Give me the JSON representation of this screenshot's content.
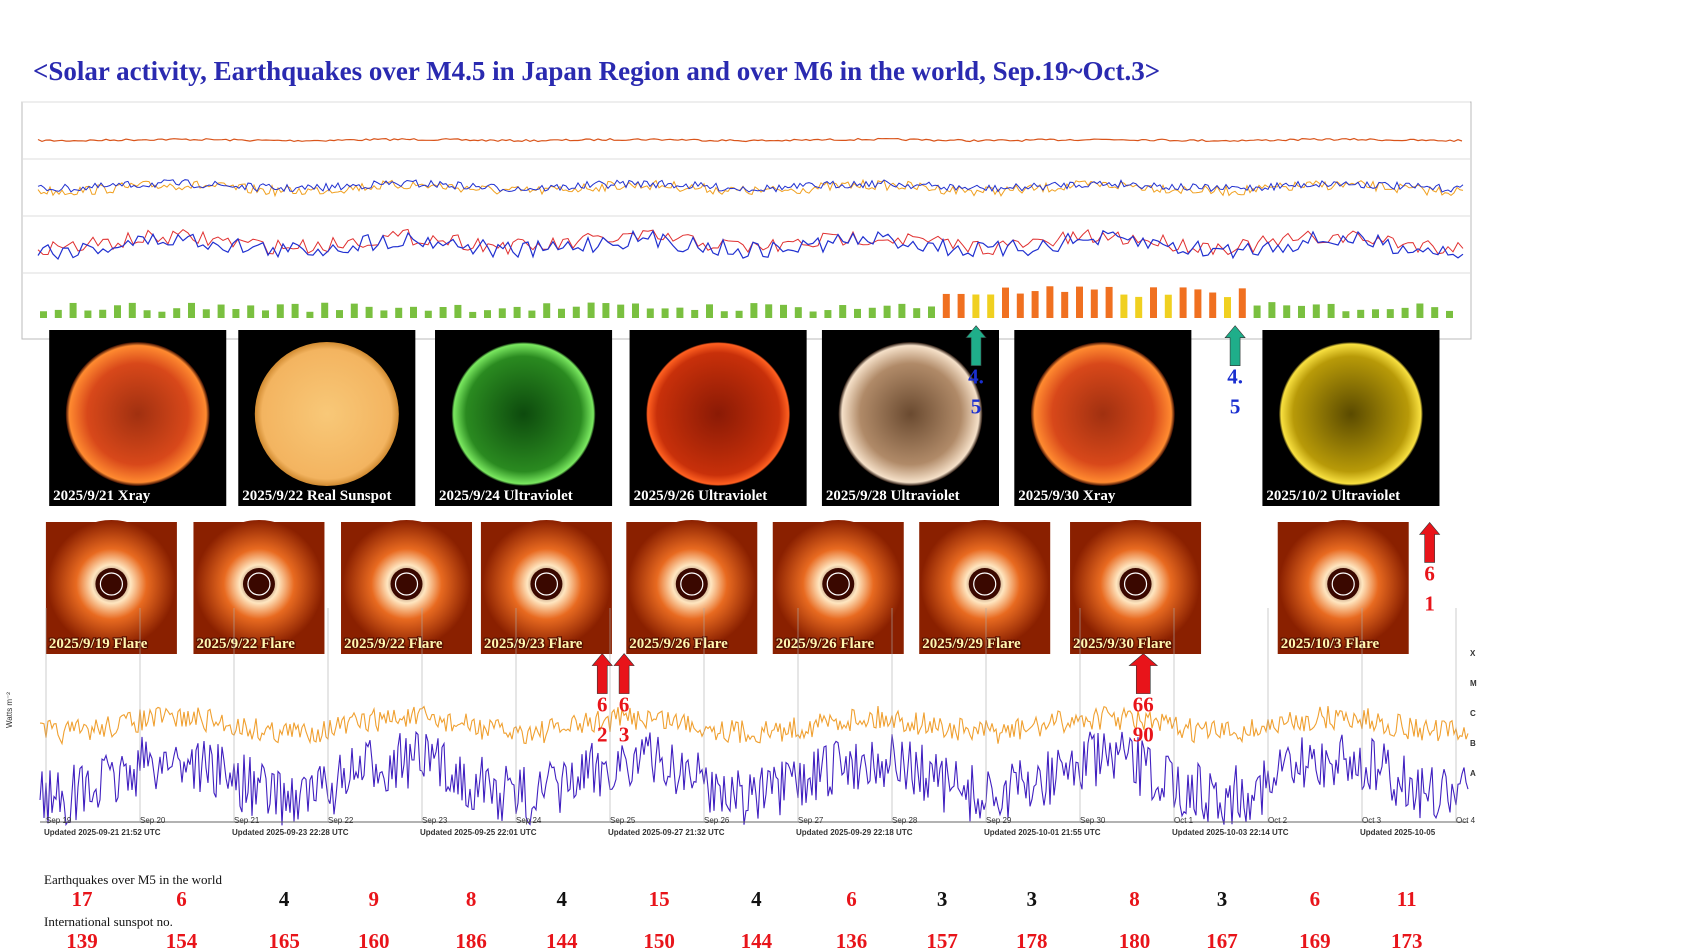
{
  "title": "<Solar activity, Earthquakes over M4.5 in Japan Region and over M6 in the world, Sep.19~Oct.3>",
  "sun_images": [
    {
      "caption": "2025/9/21 Xray",
      "kind": "xray"
    },
    {
      "caption": "2025/9/22  Real Sunspot",
      "kind": "sunspot"
    },
    {
      "caption": "2025/9/24 Ultraviolet",
      "kind": "green"
    },
    {
      "caption": "2025/9/26 Ultraviolet",
      "kind": "red"
    },
    {
      "caption": "2025/9/28 Ultraviolet",
      "kind": "bronze"
    },
    {
      "caption": "2025/9/30 Xray",
      "kind": "xray"
    },
    {
      "caption": "2025/10/2 Ultraviolet",
      "kind": "yellow"
    }
  ],
  "flare_images": [
    "2025/9/19 Flare",
    "2025/9/22 Flare",
    "2025/9/22 Flare",
    "2025/9/23 Flare",
    "2025/9/26 Flare",
    "2025/9/26 Flare",
    "2025/9/29 Flare",
    "2025/9/30 Flare",
    "2025/10/3 Flare"
  ],
  "arrows": [
    {
      "color": "#1fae8a",
      "lines": [
        "4.",
        "5"
      ],
      "text_color": "#1a2fd0"
    },
    {
      "color": "#1fae8a",
      "lines": [
        "4.",
        "5"
      ],
      "text_color": "#1a2fd0"
    },
    {
      "color": "#e8141a",
      "lines": [
        "6",
        "1"
      ],
      "text_color": "#e8141a"
    },
    {
      "color": "#e8141a",
      "lines": [
        "6",
        "2"
      ],
      "text_color": "#e8141a"
    },
    {
      "color": "#e8141a",
      "lines": [
        "6",
        "3"
      ],
      "text_color": "#e8141a"
    },
    {
      "color": "#e8141a",
      "lines": [
        "66",
        "90"
      ],
      "text_color": "#e8141a"
    }
  ],
  "xray_chart": {
    "y_label": "Watts m⁻²",
    "classes": [
      "X",
      "M",
      "C",
      "B",
      "A"
    ],
    "dates": [
      "Sep 19",
      "Sep 20",
      "Sep 21",
      "Sep 22",
      "Sep 23",
      "Sep 24",
      "Sep 25",
      "Sep 26",
      "Sep 27",
      "Sep 28",
      "Sep 29",
      "Sep 30",
      "Oct 1",
      "Oct 2",
      "Oct 3",
      "Oct 4"
    ],
    "updated": [
      "Updated 2025-09-21 21:52 UTC",
      "Updated 2025-09-23 22:28 UTC",
      "Updated 2025-09-25 22:01 UTC",
      "Updated 2025-09-27 21:32 UTC",
      "Updated 2025-09-29 22:18 UTC",
      "Updated 2025-10-01 21:55 UTC",
      "Updated 2025-10-03 22:14 UTC",
      "Updated 2025-10-05"
    ]
  },
  "earthquakes": {
    "label": "Earthquakes over M5 in the world",
    "counts": [
      17,
      6,
      4,
      9,
      8,
      4,
      15,
      4,
      6,
      3,
      3,
      8,
      3,
      6,
      11
    ],
    "colors": [
      "#e8141a",
      "#e8141a",
      "#111111",
      "#e8141a",
      "#e8141a",
      "#111111",
      "#e8141a",
      "#111111",
      "#e8141a",
      "#111111",
      "#111111",
      "#e8141a",
      "#111111",
      "#e8141a",
      "#e8141a"
    ]
  },
  "sunspots": {
    "label": "International sunspot no.",
    "color": "#e8141a",
    "values": [
      139,
      154,
      165,
      160,
      186,
      144,
      150,
      144,
      136,
      157,
      178,
      180,
      167,
      169,
      173
    ]
  }
}
